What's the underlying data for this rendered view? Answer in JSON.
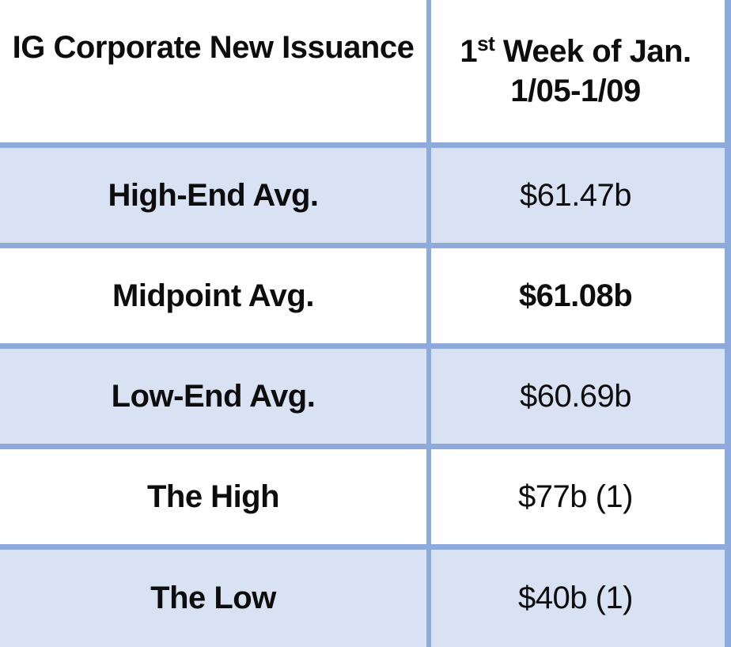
{
  "colors": {
    "border": "#8EAADB",
    "shaded_row_bg": "#D9E2F3",
    "white_bg": "#FFFFFF",
    "text": "#0D0D0D"
  },
  "table": {
    "header": {
      "col1": "IG Corporate New Issuance",
      "col2": {
        "prefix": "1",
        "superscript": "st",
        "line1_rest": " Week of Jan.",
        "line2": "1/05-1/09"
      }
    },
    "rows": [
      {
        "label": "High-End Avg.",
        "value": "$61.47b",
        "value_bold": false,
        "shaded": true
      },
      {
        "label": "Midpoint Avg.",
        "value": "$61.08b",
        "value_bold": true,
        "shaded": false
      },
      {
        "label": "Low-End Avg.",
        "value": "$60.69b",
        "value_bold": false,
        "shaded": true
      },
      {
        "label": "The High",
        "value": "$77b (1)",
        "value_bold": false,
        "shaded": false
      },
      {
        "label": "The Low",
        "value": "$40b (1)",
        "value_bold": false,
        "shaded": true
      }
    ]
  },
  "chart_data": {
    "type": "table",
    "title": "IG Corporate New Issuance — 1st Week of Jan. 1/05-1/09",
    "columns": [
      "IG Corporate New Issuance",
      "1st Week of Jan. 1/05-1/09"
    ],
    "rows": [
      [
        "High-End Avg.",
        "$61.47b"
      ],
      [
        "Midpoint Avg.",
        "$61.08b"
      ],
      [
        "Low-End Avg.",
        "$60.69b"
      ],
      [
        "The High",
        "$77b (1)"
      ],
      [
        "The Low",
        "$40b (1)"
      ]
    ],
    "values_billions_usd": {
      "high_end_avg": 61.47,
      "midpoint_avg": 61.08,
      "low_end_avg": 60.69,
      "the_high": 77,
      "the_low": 40
    }
  }
}
